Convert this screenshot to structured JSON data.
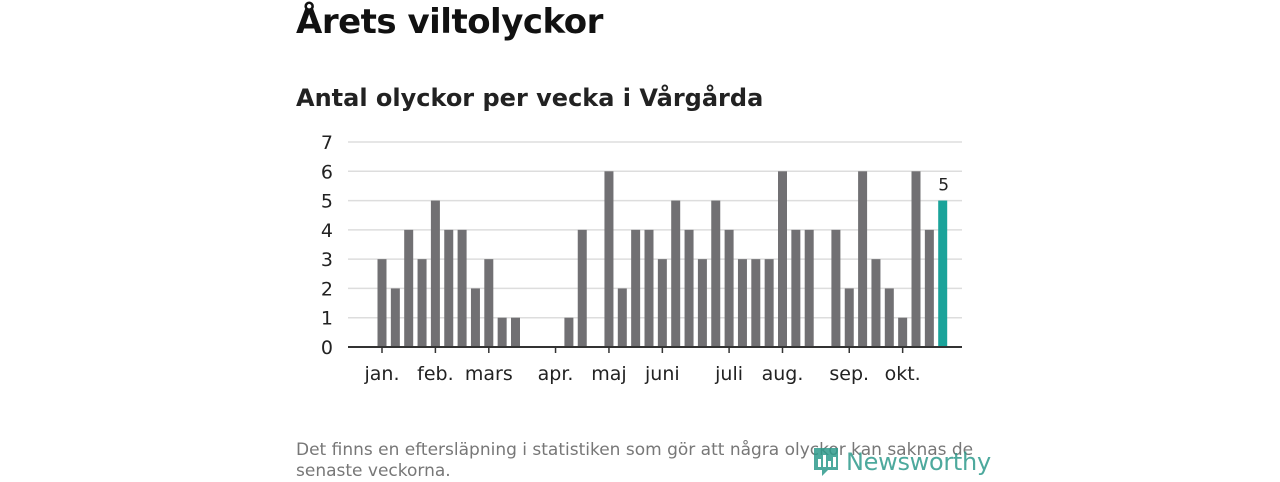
{
  "title": "Årets viltolyckor",
  "subtitle": "Antal olyckor per vecka i Vårgårda",
  "footnote": "Det finns en eftersläpning i statistiken som gör att några olyckor kan saknas de senaste veckorna.",
  "logo": {
    "text": "Newsworthy",
    "icon": "newsworthy-logo-icon"
  },
  "colors": {
    "bar": "#717073",
    "highlight": "#1aa39a",
    "grid": "#dddddd",
    "axis": "#333333",
    "text": "#222222"
  },
  "chart_data": {
    "type": "bar",
    "title": "Antal olyckor per vecka i Vårgårda",
    "xlabel": "",
    "ylabel": "",
    "ylim": [
      0,
      7
    ],
    "yticks": [
      0,
      1,
      2,
      3,
      4,
      5,
      6,
      7
    ],
    "x": [
      1,
      2,
      3,
      4,
      5,
      6,
      7,
      8,
      9,
      10,
      11,
      12,
      13,
      14,
      15,
      16,
      17,
      18,
      19,
      20,
      21,
      22,
      23,
      24,
      25,
      26,
      27,
      28,
      29,
      30,
      31,
      32,
      33,
      34,
      35,
      36,
      37,
      38,
      39,
      40,
      41,
      42,
      43,
      44
    ],
    "values": [
      3,
      2,
      4,
      3,
      5,
      4,
      4,
      2,
      3,
      1,
      1,
      0,
      0,
      0,
      1,
      4,
      0,
      6,
      2,
      4,
      4,
      3,
      5,
      4,
      3,
      5,
      4,
      3,
      3,
      3,
      6,
      4,
      4,
      0,
      4,
      2,
      6,
      3,
      2,
      1,
      6,
      4,
      5,
      null
    ],
    "highlight": {
      "week": 43,
      "value": 5,
      "label": "5"
    },
    "month_ticks": [
      {
        "label": "jan.",
        "week": 1
      },
      {
        "label": "feb.",
        "week": 5
      },
      {
        "label": "mars",
        "week": 9
      },
      {
        "label": "apr.",
        "week": 14
      },
      {
        "label": "maj",
        "week": 18
      },
      {
        "label": "juni",
        "week": 22
      },
      {
        "label": "juli",
        "week": 27
      },
      {
        "label": "aug.",
        "week": 31
      },
      {
        "label": "sep.",
        "week": 36
      },
      {
        "label": "okt.",
        "week": 40
      }
    ],
    "grid": true
  }
}
